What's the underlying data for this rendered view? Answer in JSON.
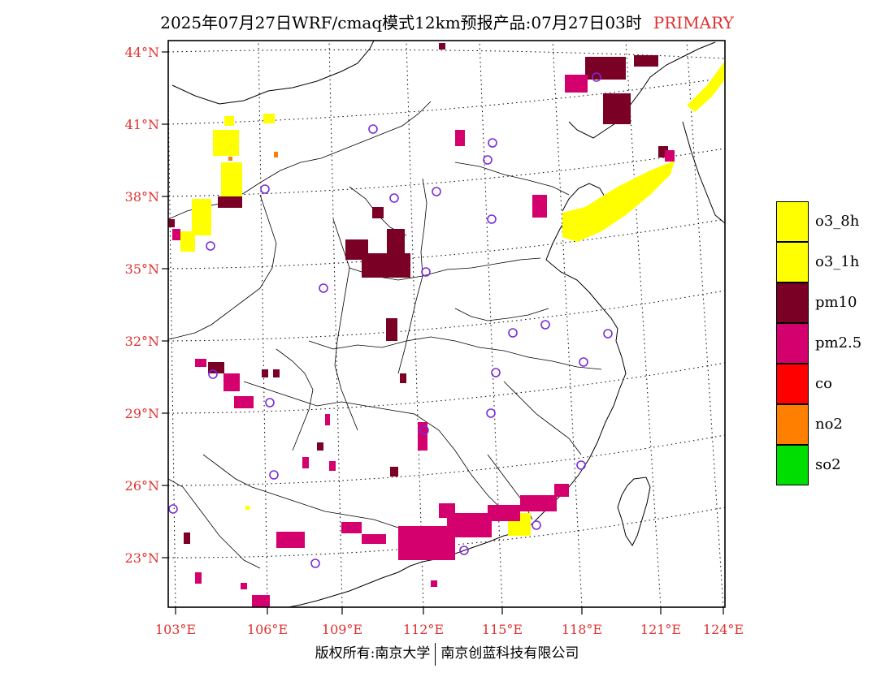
{
  "title": {
    "text": "2025年07月27日WRF/cmaq模式12km预报产品:07月27日03时",
    "tag": "PRIMARY"
  },
  "axes": {
    "lat_labels": [
      "44°N",
      "41°N",
      "38°N",
      "35°N",
      "32°N",
      "29°N",
      "26°N",
      "23°N"
    ],
    "lon_labels": [
      "103°E",
      "106°E",
      "109°E",
      "112°E",
      "115°E",
      "118°E",
      "121°E",
      "124°E"
    ]
  },
  "legend": [
    {
      "label": "o3_8h",
      "color": "#ffff00"
    },
    {
      "label": "o3_1h",
      "color": "#ffff00"
    },
    {
      "label": "pm10",
      "color": "#7a0026"
    },
    {
      "label": "pm2.5",
      "color": "#d4006e"
    },
    {
      "label": "co",
      "color": "#ff0000"
    },
    {
      "label": "no2",
      "color": "#ff7f00"
    },
    {
      "label": "so2",
      "color": "#00dd00"
    }
  ],
  "footer": {
    "left": "版权所有:南京大学",
    "right": "南京创蓝科技有限公司"
  }
}
